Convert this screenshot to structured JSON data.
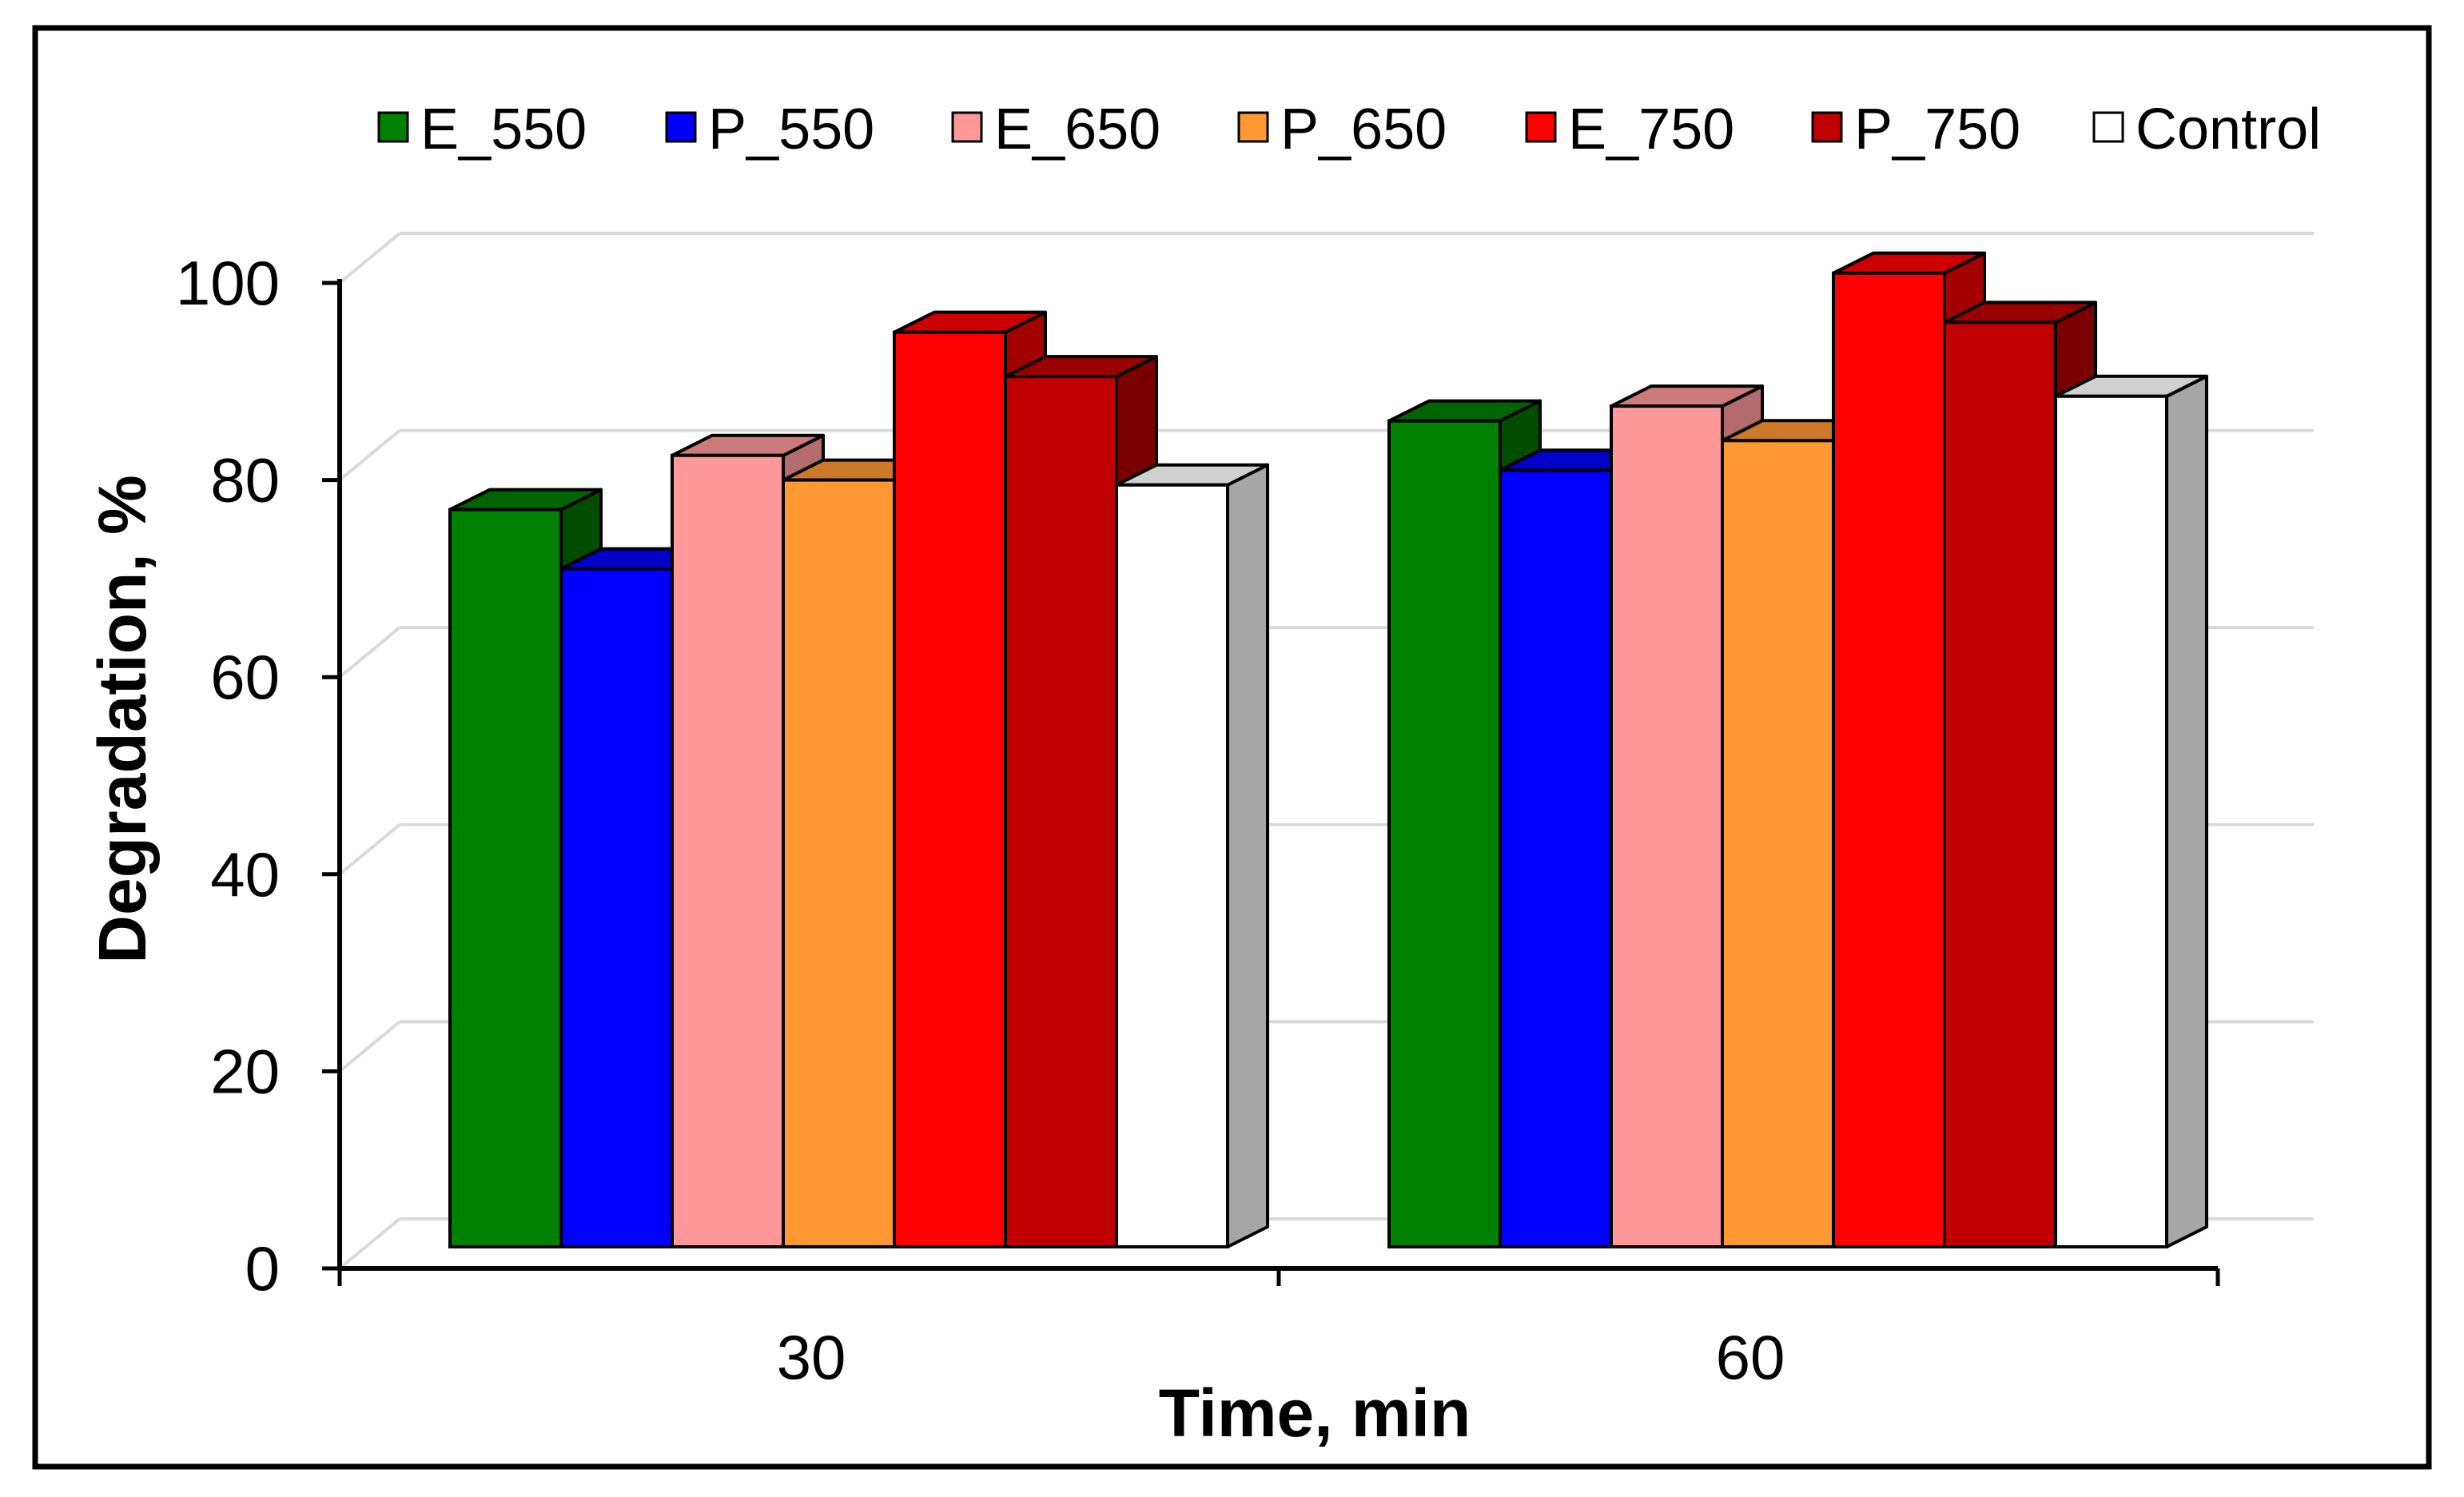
{
  "chart_data": {
    "type": "bar",
    "style": "3d-clustered",
    "title": "",
    "xlabel": "Time, min",
    "ylabel": "Degradation, %",
    "categories": [
      "30",
      "60"
    ],
    "ylim": [
      0,
      100
    ],
    "yticks": [
      0,
      20,
      40,
      60,
      80,
      100
    ],
    "grid": true,
    "legend_position": "top",
    "series": [
      {
        "name": "E_550",
        "values": [
          77,
          86
        ],
        "color": "#008000",
        "top_color": "#006400",
        "side_color": "#004d00"
      },
      {
        "name": "P_550",
        "values": [
          71,
          81
        ],
        "color": "#0000ff",
        "top_color": "#0000c8",
        "side_color": "#000096"
      },
      {
        "name": "E_650",
        "values": [
          82.5,
          87.5
        ],
        "color": "#ff9999",
        "top_color": "#cc7a7a",
        "side_color": "#b36b6b"
      },
      {
        "name": "P_650",
        "values": [
          80,
          84
        ],
        "color": "#ff9933",
        "top_color": "#cc7a29",
        "side_color": "#a66322"
      },
      {
        "name": "E_750",
        "values": [
          95,
          101
        ],
        "color": "#ff0000",
        "top_color": "#cc0000",
        "side_color": "#a30000"
      },
      {
        "name": "P_750",
        "values": [
          90.5,
          96
        ],
        "color": "#c00000",
        "top_color": "#990000",
        "side_color": "#7a0000"
      },
      {
        "name": "Control",
        "values": [
          79.5,
          88.5
        ],
        "color": "#ffffff",
        "top_color": "#d0d0d0",
        "side_color": "#a6a6a6"
      }
    ]
  }
}
